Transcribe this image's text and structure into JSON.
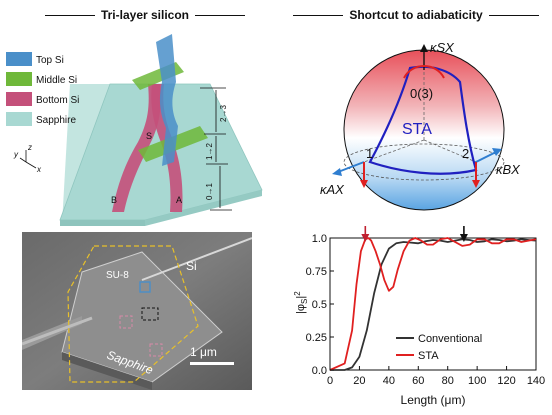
{
  "headers": {
    "left": "Tri-layer silicon",
    "right": "Shortcut to adiabaticity"
  },
  "legend": [
    {
      "label": "Top Si",
      "color": "#4a8fc9"
    },
    {
      "label": "Middle Si",
      "color": "#6fb83a"
    },
    {
      "label": "Bottom Si",
      "color": "#c4507a"
    },
    {
      "label": "Sapphire",
      "color": "#a8d8d2"
    }
  ],
  "device": {
    "label_s": "S",
    "label_b": "B",
    "label_a": "A",
    "seg_1": "0→1",
    "seg_2": "1→2",
    "seg_3": "2→3",
    "axes": {
      "y": "y",
      "z": "z",
      "x": "x"
    }
  },
  "sem": {
    "su8": "SU-8",
    "si": "Si",
    "sapphire": "Sapphire",
    "scalebar": "1 μm"
  },
  "sphere": {
    "k_sx": "κSX",
    "k_ax": "κAX",
    "k_bx": "κBX",
    "node_top": "0(3)",
    "node_1": "1",
    "node_2": "2",
    "sta": "STA"
  },
  "chart_data": {
    "type": "line",
    "xlabel": "Length (μm)",
    "ylabel": "|φS|2",
    "xlim": [
      0,
      140
    ],
    "ylim": [
      0,
      1.0
    ],
    "xticks": [
      0,
      20,
      40,
      60,
      80,
      100,
      120,
      140
    ],
    "yticks": [
      0.0,
      0.25,
      0.5,
      0.75,
      1.0
    ],
    "ytick_labels": [
      "0.0",
      "0.25",
      "0.5",
      "0.75",
      "1.0"
    ],
    "series": [
      {
        "name": "Conventional",
        "color": "#333333",
        "x": [
          0,
          10,
          15,
          20,
          25,
          30,
          35,
          40,
          45,
          50,
          55,
          60,
          65,
          70,
          75,
          80,
          85,
          90,
          95,
          100,
          105,
          110,
          115,
          120,
          125,
          130,
          135,
          140
        ],
        "y": [
          0,
          0.0,
          0.02,
          0.1,
          0.3,
          0.58,
          0.8,
          0.92,
          0.96,
          0.97,
          0.965,
          0.96,
          0.975,
          0.985,
          0.98,
          0.97,
          0.98,
          0.99,
          0.985,
          0.97,
          0.975,
          0.99,
          0.985,
          0.975,
          0.98,
          0.99,
          0.985,
          0.98
        ]
      },
      {
        "name": "STA",
        "color": "#e02020",
        "x": [
          0,
          10,
          15,
          18,
          21,
          24,
          26,
          28,
          31,
          34,
          37,
          40,
          43,
          46,
          50,
          54,
          58,
          62,
          66,
          70,
          75,
          80,
          85,
          90,
          95,
          100,
          105,
          110,
          115,
          120,
          125,
          130,
          135,
          140
        ],
        "y": [
          0,
          0.05,
          0.3,
          0.65,
          0.9,
          0.99,
          1.0,
          0.98,
          0.9,
          0.8,
          0.68,
          0.6,
          0.63,
          0.76,
          0.9,
          0.98,
          1.0,
          0.98,
          0.95,
          0.95,
          0.99,
          1.0,
          0.97,
          0.94,
          0.95,
          0.99,
          0.99,
          0.96,
          0.96,
          0.99,
          0.99,
          0.97,
          0.98,
          0.99
        ]
      }
    ],
    "annotations": [
      {
        "label": "STA optimum arrow",
        "x": 24,
        "color": "#c02030"
      },
      {
        "label": "Conventional arrow",
        "x": 91,
        "color": "#111111"
      }
    ]
  }
}
